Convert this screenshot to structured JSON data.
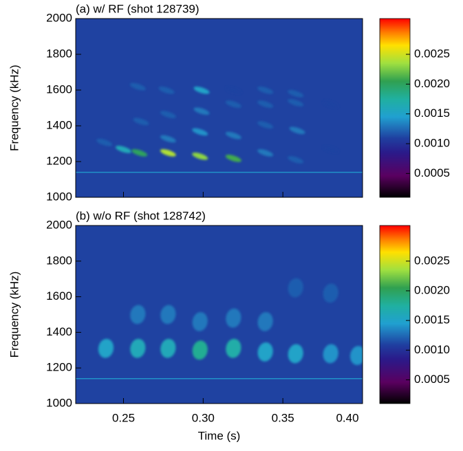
{
  "chart_data": [
    {
      "type": "spectrogram",
      "title": "(a) w/ RF (shot 128739)",
      "ylabel": "Frequency (kHz)",
      "xlim": [
        0.22,
        0.4
      ],
      "xticks": [
        0.25,
        {
          "value": 0.3,
          "label": "0.30"
        },
        0.35,
        {
          "value": 0.4,
          "label": "0.40"
        }
      ],
      "ylim": [
        1000,
        2000
      ],
      "yticks": [
        1000,
        1200,
        1400,
        1600,
        1800,
        2000
      ],
      "clim": [
        0.0001,
        0.0031
      ],
      "cticks": [
        0.0005,
        {
          "value": 0.001,
          "label": "0.0010"
        },
        0.0015,
        {
          "value": 0.002,
          "label": "0.0020"
        },
        0.0025
      ],
      "background_value": 0.0011,
      "line_frequency": 1140,
      "line_value": 0.0014,
      "x": [
        0.238,
        0.25,
        0.26,
        0.261,
        0.259,
        0.278,
        0.278,
        0.278,
        0.277,
        0.298,
        0.298,
        0.299,
        0.299,
        0.319,
        0.319,
        0.319,
        0.319,
        0.339,
        0.339,
        0.339,
        0.339,
        0.358,
        0.359,
        0.358,
        0.358,
        0.38,
        0.38
      ],
      "y": [
        1307,
        1268,
        1249,
        1424,
        1619,
        1249,
        1327,
        1463,
        1599,
        1230,
        1366,
        1482,
        1599,
        1218,
        1346,
        1521,
        1599,
        1249,
        1405,
        1521,
        1599,
        1210,
        1374,
        1529,
        1580,
        1268,
        1521
      ],
      "values": [
        0.0012,
        0.0016,
        0.002,
        0.0012,
        0.0012,
        0.0024,
        0.0013,
        0.0012,
        0.0012,
        0.0023,
        0.0014,
        0.0013,
        0.0015,
        0.0021,
        0.0013,
        0.0012,
        0.0011,
        0.0013,
        0.0012,
        0.0012,
        0.0012,
        0.0012,
        0.0013,
        0.0012,
        0.0012,
        0.0011,
        0.0011
      ]
    },
    {
      "type": "spectrogram",
      "title": "(b) w/o RF (shot 128742)",
      "ylabel": "Frequency (kHz)",
      "xlabel": "Time (s)",
      "xlim": [
        0.22,
        0.4
      ],
      "xticks": [
        0.25,
        {
          "value": 0.3,
          "label": "0.30"
        },
        0.35,
        {
          "value": 0.4,
          "label": "0.40"
        }
      ],
      "ylim": [
        1000,
        2000
      ],
      "yticks": [
        1000,
        1200,
        1400,
        1600,
        1800,
        2000
      ],
      "clim": [
        0.0001,
        0.0031
      ],
      "cticks": [
        0.0005,
        {
          "value": 0.001,
          "label": "0.0010"
        },
        0.0015,
        {
          "value": 0.002,
          "label": "0.0020"
        },
        0.0025
      ],
      "background_value": 0.0011,
      "line_frequency": 1140,
      "line_value": 0.0014,
      "x": [
        0.239,
        0.259,
        0.278,
        0.298,
        0.319,
        0.339,
        0.358,
        0.38,
        0.397,
        0.259,
        0.278,
        0.298,
        0.319,
        0.339,
        0.358,
        0.38
      ],
      "y": [
        1310,
        1310,
        1310,
        1300,
        1310,
        1290,
        1280,
        1280,
        1270,
        1500,
        1500,
        1460,
        1480,
        1460,
        1650,
        1620
      ],
      "values": [
        0.0015,
        0.0016,
        0.0016,
        0.0018,
        0.0017,
        0.0015,
        0.0015,
        0.0014,
        0.0014,
        0.0013,
        0.0013,
        0.0013,
        0.0013,
        0.0013,
        0.0012,
        0.0012
      ]
    }
  ]
}
